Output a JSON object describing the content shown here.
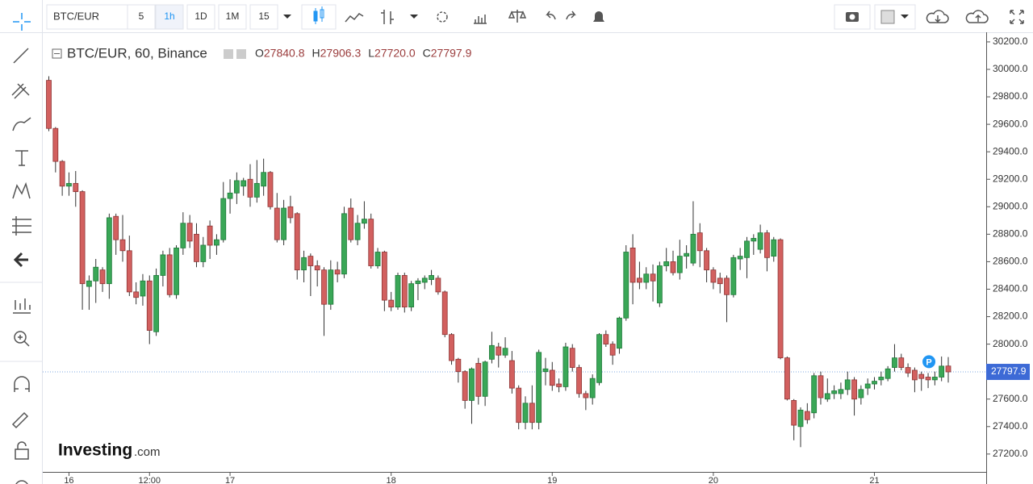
{
  "toolbar": {
    "symbol": "BTC/EUR",
    "intervals": [
      "5",
      "1h",
      "1D",
      "1M",
      "15"
    ],
    "active_interval": 1
  },
  "logo": {
    "brand": "Investing",
    "suffix": ".com"
  },
  "chart_data": {
    "type": "candlestick",
    "title": "BTC/EUR, 60, Binance",
    "ohlc_keys": [
      "O",
      "H",
      "L",
      "C"
    ],
    "ohlc_labels": [
      "27840.8",
      "27906.3",
      "27720.0",
      "27797.9"
    ],
    "marker_label": "P",
    "marker_index": 131,
    "last_price": {
      "value": 27797.9,
      "label": "27797.9"
    },
    "up_color": "#3aa757",
    "up_border": "#1f7a3a",
    "down_color": "#d2605f",
    "down_border": "#8e3535",
    "wick_color": "#333333",
    "grid": false,
    "ylim": [
      27070,
      30270
    ],
    "yticks": [
      {
        "value": 27200,
        "label": "27200.0"
      },
      {
        "value": 27400,
        "label": "27400.0"
      },
      {
        "value": 27600,
        "label": "27600.0"
      },
      {
        "value": 27800,
        "label": "27800.0"
      },
      {
        "value": 28000,
        "label": "28000.0"
      },
      {
        "value": 28200,
        "label": "28200.0"
      },
      {
        "value": 28400,
        "label": "28400.0"
      },
      {
        "value": 28600,
        "label": "28600.0"
      },
      {
        "value": 28800,
        "label": "28800.0"
      },
      {
        "value": 29000,
        "label": "29000.0"
      },
      {
        "value": 29200,
        "label": "29200.0"
      },
      {
        "value": 29400,
        "label": "29400.0"
      },
      {
        "value": 29600,
        "label": "29600.0"
      },
      {
        "value": 29800,
        "label": "29800.0"
      },
      {
        "value": 30000,
        "label": "30000.0"
      },
      {
        "value": 30200,
        "label": "30200.0"
      }
    ],
    "categories": [
      null,
      null,
      null,
      "16",
      null,
      null,
      null,
      null,
      null,
      null,
      null,
      null,
      null,
      null,
      null,
      "12:00",
      null,
      null,
      null,
      null,
      null,
      null,
      null,
      null,
      null,
      null,
      null,
      "17",
      null,
      null,
      null,
      null,
      null,
      null,
      null,
      null,
      null,
      null,
      null,
      null,
      null,
      null,
      null,
      null,
      null,
      null,
      null,
      null,
      null,
      null,
      null,
      "18",
      null,
      null,
      null,
      null,
      null,
      null,
      null,
      null,
      null,
      null,
      null,
      null,
      null,
      null,
      null,
      null,
      null,
      null,
      null,
      null,
      null,
      null,
      null,
      "19",
      null,
      null,
      null,
      null,
      null,
      null,
      null,
      null,
      null,
      null,
      null,
      null,
      null,
      null,
      null,
      null,
      null,
      null,
      null,
      null,
      null,
      null,
      null,
      "20",
      null,
      null,
      null,
      null,
      null,
      null,
      null,
      null,
      null,
      null,
      null,
      null,
      null,
      null,
      null,
      null,
      null,
      null,
      null,
      null,
      null,
      null,
      null,
      "21",
      null,
      null,
      null,
      null,
      null,
      null,
      null,
      null,
      null,
      null,
      null
    ],
    "open": [
      29920,
      29570,
      29330,
      29150,
      29170,
      29110,
      28420,
      28460,
      28540,
      28440,
      28930,
      28760,
      28680,
      28380,
      28350,
      28460,
      28090,
      28500,
      28650,
      28360,
      28700,
      28880,
      28800,
      28600,
      28860,
      28720,
      28760,
      29060,
      29100,
      29150,
      29200,
      29070,
      29150,
      29250,
      28990,
      28760,
      29000,
      28950,
      28540,
      28640,
      28570,
      28540,
      28290,
      28540,
      28510,
      28990,
      28760,
      28880,
      28910,
      28570,
      28670,
      28320,
      28270,
      28500,
      28270,
      28440,
      28450,
      28470,
      28480,
      28380,
      28070,
      27890,
      27800,
      27590,
      27860,
      27620,
      27890,
      27980,
      27920,
      27880,
      27680,
      27430,
      27570,
      27430,
      27800,
      27810,
      27710,
      27690,
      27970,
      27830,
      27640,
      27610,
      27720,
      28070,
      28000,
      27970,
      28190,
      28700,
      28480,
      28450,
      28510,
      28300,
      28570,
      28600,
      28520,
      28640,
      28590,
      28810,
      28680,
      28540,
      28480,
      28480,
      28360,
      28620,
      28630,
      28750,
      28690,
      28810,
      28640,
      28760,
      27900,
      27590,
      27400,
      27510,
      27500,
      27770,
      27600,
      27640,
      27640,
      27670,
      27740,
      27610,
      27680,
      27710,
      27740,
      27750,
      27830,
      27900,
      27830,
      27810,
      27780,
      27760,
      27740,
      27760,
      27840.8
    ],
    "high": [
      29950,
      29580,
      29340,
      29250,
      29260,
      29120,
      28500,
      28620,
      28560,
      28950,
      28950,
      28940,
      28790,
      28450,
      28510,
      28500,
      28550,
      28680,
      28700,
      28720,
      28960,
      28940,
      28880,
      28780,
      28900,
      28800,
      29180,
      29200,
      29250,
      29210,
      29310,
      29340,
      29350,
      29260,
      29100,
      29050,
      29080,
      28960,
      28680,
      28660,
      28610,
      28560,
      28610,
      28600,
      29000,
      29060,
      28940,
      29040,
      28950,
      28700,
      28680,
      28380,
      28520,
      28520,
      28460,
      28480,
      28500,
      28540,
      28500,
      28390,
      28080,
      27900,
      27810,
      27830,
      27900,
      27880,
      28090,
      28010,
      28050,
      27950,
      27700,
      27620,
      27700,
      27960,
      27900,
      27870,
      27750,
      28010,
      28000,
      27850,
      27660,
      27780,
      28080,
      28100,
      28020,
      28200,
      28720,
      28800,
      28600,
      28560,
      28580,
      28600,
      28700,
      28680,
      28760,
      28720,
      29040,
      28880,
      28700,
      28560,
      28520,
      28500,
      28650,
      28700,
      28780,
      28800,
      28870,
      28830,
      28780,
      28770,
      27910,
      27600,
      27540,
      27570,
      27790,
      27800,
      27750,
      27700,
      27720,
      27800,
      27760,
      27700,
      27750,
      27760,
      27800,
      27840,
      28000,
      27930,
      27860,
      27830,
      27800,
      27790,
      27800,
      27910,
      27906.3
    ],
    "low": [
      29550,
      29250,
      29080,
      29080,
      29000,
      28250,
      28250,
      28300,
      28380,
      28330,
      28650,
      28600,
      28350,
      28290,
      28280,
      28000,
      28060,
      28420,
      28340,
      28330,
      28650,
      28700,
      28560,
      28560,
      28620,
      28650,
      28740,
      28950,
      29020,
      29080,
      29000,
      29030,
      29080,
      28980,
      28740,
      28720,
      28880,
      28470,
      28450,
      28350,
      28420,
      28060,
      28250,
      28450,
      28480,
      28740,
      28720,
      28840,
      28550,
      28550,
      28240,
      28240,
      28250,
      28230,
      28240,
      28320,
      28400,
      28430,
      28360,
      28050,
      27850,
      27720,
      27530,
      27420,
      27560,
      27550,
      27860,
      27830,
      27900,
      27640,
      27380,
      27380,
      27380,
      27380,
      27700,
      27660,
      27650,
      27660,
      27800,
      27610,
      27520,
      27560,
      27700,
      27980,
      27850,
      27930,
      28170,
      28290,
      28400,
      28400,
      28310,
      28270,
      28530,
      28500,
      28470,
      28550,
      28570,
      28560,
      28450,
      28400,
      28370,
      28160,
      28340,
      28540,
      28480,
      28650,
      28660,
      28530,
      28600,
      27890,
      27590,
      27300,
      27250,
      27420,
      27460,
      27560,
      27580,
      27600,
      27600,
      27630,
      27480,
      27560,
      27630,
      27670,
      27700,
      27730,
      27800,
      27810,
      27760,
      27650,
      27660,
      27680,
      27700,
      27730,
      27720.0
    ],
    "close": [
      29570,
      29330,
      29150,
      29170,
      29110,
      28440,
      28460,
      28560,
      28440,
      28920,
      28760,
      28680,
      28380,
      28340,
      28460,
      28100,
      28500,
      28650,
      28360,
      28700,
      28880,
      28750,
      28600,
      28720,
      28720,
      28760,
      29060,
      29100,
      29190,
      29190,
      29070,
      29170,
      29250,
      29000,
      28760,
      28990,
      28920,
      28540,
      28630,
      28570,
      28540,
      28290,
      28540,
      28510,
      28950,
      28760,
      28880,
      28910,
      28570,
      28670,
      28320,
      28270,
      28500,
      28270,
      28440,
      28460,
      28480,
      28500,
      28380,
      28070,
      27880,
      27800,
      27590,
      27820,
      27620,
      27870,
      27990,
      27920,
      27970,
      27680,
      27430,
      27570,
      27430,
      27940,
      27820,
      27700,
      27690,
      27980,
      27830,
      27640,
      27610,
      27750,
      28070,
      28000,
      27920,
      28190,
      28670,
      28450,
      28450,
      28510,
      28460,
      28570,
      28600,
      28520,
      28640,
      28660,
      28800,
      28680,
      28540,
      28450,
      28440,
      28360,
      28630,
      28640,
      28750,
      28770,
      28810,
      28630,
      28760,
      27900,
      27600,
      27410,
      27520,
      27450,
      27770,
      27610,
      27640,
      27660,
      27670,
      27740,
      27600,
      27670,
      27710,
      27730,
      27760,
      27820,
      27900,
      27830,
      27790,
      27740,
      27750,
      27740,
      27760,
      27840,
      27797.9
    ]
  }
}
